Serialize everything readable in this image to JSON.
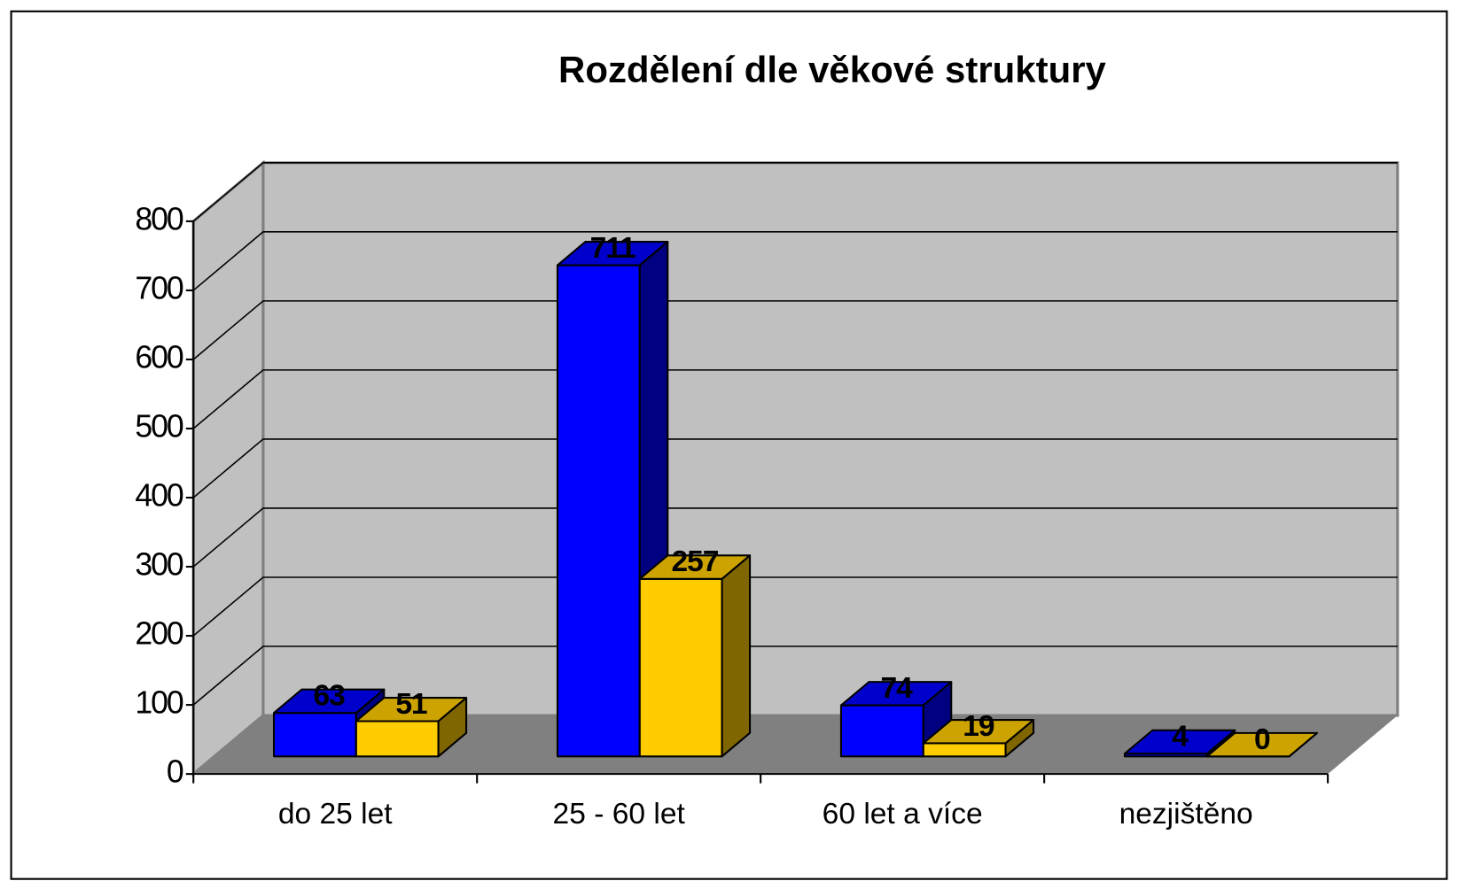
{
  "chart_data": {
    "type": "bar3d",
    "title": "Rozdělení dle věkové struktury",
    "categories": [
      "do 25 let",
      "25 - 60 let",
      "60 let a více",
      "nezjištěno"
    ],
    "series": [
      {
        "color": "#0000ff",
        "values": [
          63,
          711,
          74,
          4
        ]
      },
      {
        "color": "#ffcc00",
        "values": [
          51,
          257,
          19,
          0
        ]
      }
    ],
    "ylim": [
      0,
      800
    ],
    "yticks": [
      0,
      100,
      200,
      300,
      400,
      500,
      600,
      700,
      800
    ],
    "grid": true
  }
}
